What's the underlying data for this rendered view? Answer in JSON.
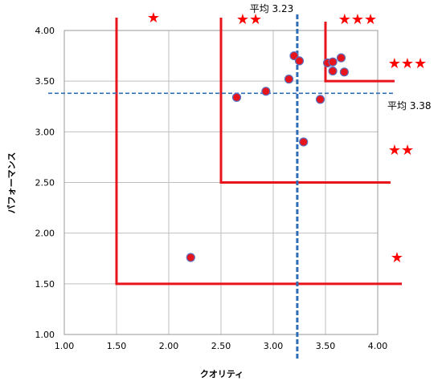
{
  "chart_data": {
    "type": "scatter",
    "xlabel": "クオリティ",
    "ylabel": "パフォーマンス",
    "xlim": [
      1.0,
      4.0
    ],
    "ylim": [
      1.0,
      4.0
    ],
    "x_ticks": [
      "1.00",
      "1.50",
      "2.00",
      "2.50",
      "3.00",
      "3.50",
      "4.00"
    ],
    "y_ticks": [
      "1.00",
      "1.50",
      "2.00",
      "2.50",
      "3.00",
      "3.50",
      "4.00"
    ],
    "grid": true,
    "points": [
      {
        "x": 2.21,
        "y": 1.76
      },
      {
        "x": 2.65,
        "y": 3.34
      },
      {
        "x": 2.93,
        "y": 3.4
      },
      {
        "x": 3.15,
        "y": 3.52
      },
      {
        "x": 3.2,
        "y": 3.75
      },
      {
        "x": 3.25,
        "y": 3.7
      },
      {
        "x": 3.29,
        "y": 2.9
      },
      {
        "x": 3.45,
        "y": 3.32
      },
      {
        "x": 3.52,
        "y": 3.68
      },
      {
        "x": 3.57,
        "y": 3.69
      },
      {
        "x": 3.57,
        "y": 3.6
      },
      {
        "x": 3.65,
        "y": 3.73
      },
      {
        "x": 3.68,
        "y": 3.59
      }
    ],
    "averages": {
      "x": {
        "value": 3.23,
        "label": "平均 3.23"
      },
      "y": {
        "value": 3.38,
        "label": "平均 3.38"
      }
    },
    "zones": [
      {
        "rating": "★",
        "threshold": 1.5
      },
      {
        "rating": "★★",
        "threshold": 2.5
      },
      {
        "rating": "★★★",
        "threshold": 3.5
      }
    ],
    "colors": {
      "point_fill": "#e8141c",
      "point_edge": "#5b6fbf",
      "zone_line": "#e8141c",
      "avg_line": "#2e6db4",
      "star": "#ff0000"
    }
  }
}
